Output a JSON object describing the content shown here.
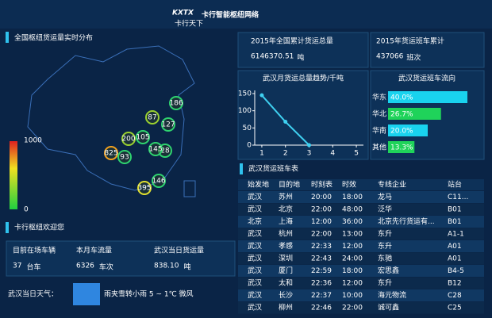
{
  "header": {
    "logo": "KXTX",
    "logo_sub": "卡行天下",
    "title": "卡行智能枢纽网络"
  },
  "map": {
    "title": "全国枢纽货运量实时分布",
    "legend_max": "1000",
    "legend_min": "0",
    "bubbles": [
      "186",
      "87",
      "127",
      "105",
      "200",
      "825",
      "93",
      "146",
      "395",
      "28",
      "145"
    ]
  },
  "stats": [
    {
      "label": "2015年全国累计货运总量",
      "value": "6146370.51",
      "unit": "吨"
    },
    {
      "label": "2015年货运班车累计",
      "value": "437066",
      "unit": "班次"
    }
  ],
  "line_chart": {
    "type": "line",
    "title": "武汉月货运总量趋势/千吨",
    "x": [
      1,
      2,
      3
    ],
    "values": [
      145,
      68,
      0
    ],
    "xlim": [
      0.7,
      5.3
    ],
    "xticks": [
      1,
      2,
      3,
      4,
      5
    ],
    "ylim": [
      0,
      150
    ],
    "yticks": [
      0,
      50,
      100,
      150
    ],
    "color": "#3fd0f0"
  },
  "bar_chart": {
    "type": "bar",
    "title": "武汉货运班车流向",
    "categories": [
      "华东",
      "华北",
      "华南",
      "其他"
    ],
    "values": [
      40,
      26.7,
      20,
      13.3
    ],
    "value_labels": [
      "40.0%",
      "26.7%",
      "20.0%",
      "13.3%"
    ],
    "colors": [
      "#19d3ef",
      "#1fd35a",
      "#19d3ef",
      "#1fd35a"
    ],
    "xlim": [
      0,
      50
    ]
  },
  "welcome": {
    "title": "卡行枢纽欢迎您",
    "items": [
      {
        "label": "目前在场车辆",
        "value": "37",
        "unit": "台车"
      },
      {
        "label": "本月车流量",
        "value": "6326",
        "unit": "车次"
      },
      {
        "label": "武汉当日货运量",
        "value": "838.10",
        "unit": "吨"
      }
    ],
    "weather_label": "武汉当日天气：",
    "weather": "雨夹雪转小雨 5 ~ 1℃ 微风"
  },
  "table": {
    "title": "武汉货运班车表",
    "headers": [
      "始发地",
      "目的地",
      "时刻表",
      "时效",
      "专线企业",
      "站台"
    ],
    "rows": [
      [
        "武汉",
        "苏州",
        "20:00",
        "18:00",
        "龙马",
        "C11..."
      ],
      [
        "武汉",
        "北京",
        "22:00",
        "48:00",
        "泛华",
        "B01"
      ],
      [
        "北京",
        "上海",
        "12:00",
        "36:00",
        "北京先行货运有...",
        "B01"
      ],
      [
        "武汉",
        "杭州",
        "22:00",
        "13:00",
        "东升",
        "A1-1"
      ],
      [
        "武汉",
        "孝感",
        "22:33",
        "12:00",
        "东升",
        "A01"
      ],
      [
        "武汉",
        "深圳",
        "22:43",
        "24:00",
        "东驰",
        "A01"
      ],
      [
        "武汉",
        "厦门",
        "22:59",
        "18:00",
        "宏思鑫",
        "B4-5"
      ],
      [
        "武汉",
        "太和",
        "22:36",
        "12:00",
        "东升",
        "B12"
      ],
      [
        "武汉",
        "长沙",
        "22:37",
        "10:00",
        "海元物流",
        "C28"
      ],
      [
        "武汉",
        "柳州",
        "22:46",
        "22:00",
        "诚可鑫",
        "C25"
      ]
    ]
  }
}
